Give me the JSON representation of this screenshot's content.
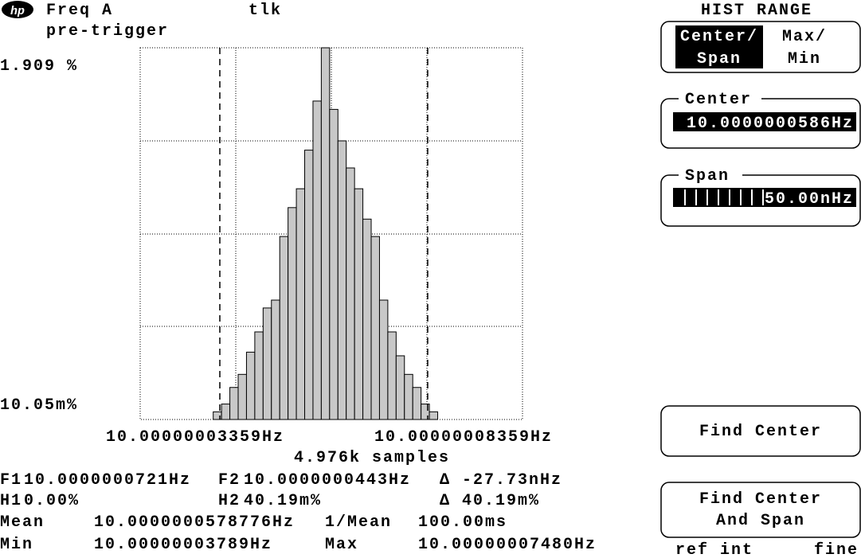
{
  "header": {
    "logo": "hp",
    "channel": "Freq A",
    "status": "tlk",
    "mode": "pre-trigger"
  },
  "histogram": {
    "type": "histogram",
    "y_top_label": "1.909 %",
    "y_bottom_label": "10.05m%",
    "log_scale": true,
    "ylim": [
      0.01005,
      1.909
    ],
    "xlim": [
      10.00000001443,
      10.0000001064
    ],
    "bins": [
      10.000000032,
      10.000000034,
      10.000000036,
      10.000000038,
      10.00000004,
      10.000000042,
      10.000000044,
      10.000000046,
      10.000000048,
      10.00000005,
      10.000000052,
      10.000000054,
      10.000000056,
      10.000000058,
      10.00000006,
      10.000000062,
      10.000000064,
      10.000000066,
      10.000000068,
      10.00000007,
      10.000000072,
      10.000000074,
      10.000000076,
      10.000000078,
      10.00000008,
      10.000000082,
      10.000000084,
      10.000000086
    ],
    "values": [
      0.0112,
      0.0125,
      0.0158,
      0.019,
      0.026,
      0.0346,
      0.0485,
      0.0542,
      0.133,
      0.2,
      0.261,
      0.45,
      0.9,
      1.909,
      0.8,
      0.513,
      0.35,
      0.261,
      0.17,
      0.133,
      0.0542,
      0.0346,
      0.0247,
      0.019,
      0.0158,
      0.0125,
      0.0112
    ],
    "color": "#c8c8c8",
    "markers": [
      10.00000003359,
      10.00000008359
    ],
    "marker_labels": [
      "10.00000003359Hz",
      "10.00000008359Hz"
    ],
    "samples": "4.976k samples"
  },
  "readouts": {
    "f1_label": "F1",
    "f1": "10.0000000721Hz",
    "f2_label": "F2",
    "f2": "10.0000000443Hz",
    "f_delta": "Δ -27.73nHz",
    "h1_label": "H1",
    "h1": "0.00%",
    "h2_label": "H2",
    "h2": "40.19m%",
    "h_delta": "Δ 40.19m%",
    "mean_label": "Mean",
    "mean": "10.0000000578776Hz",
    "inv_mean_label": "1/Mean",
    "inv_mean": "100.00ms",
    "min_label": "Min",
    "min": "10.00000003789Hz",
    "max_label": "Max",
    "max": "10.00000007480Hz"
  },
  "softkeys": {
    "title": "HIST RANGE",
    "range_mode": {
      "selected_line1": "Center/",
      "selected_line2": "Span",
      "other_line1": "Max/",
      "other_line2": "Min"
    },
    "center": {
      "label": "Center",
      "value": "10.0000000586Hz"
    },
    "span": {
      "label": "Span",
      "value": "50.00nHz"
    },
    "find_center": "Find Center",
    "find_center_span_line1": "Find Center",
    "find_center_span_line2": "And Span",
    "footer_left": "ref int",
    "footer_right": "fine"
  }
}
